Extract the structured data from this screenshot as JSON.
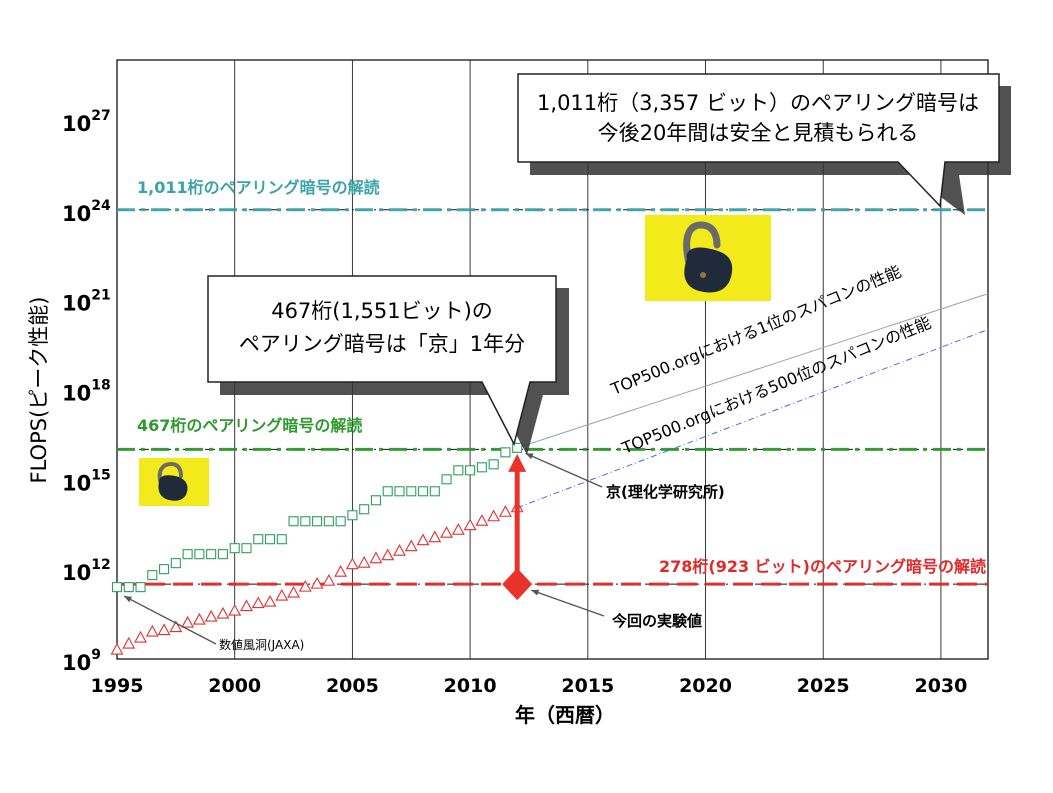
{
  "chart_data": {
    "type": "scatter",
    "xlabel": "年（西暦）",
    "ylabel": "FLOPS(ピーク性能)",
    "y_scale": "log10",
    "xlim": [
      1995,
      2032
    ],
    "ylim": [
      1000000000.0,
      1e+29
    ],
    "x_ticks": [
      1995,
      2000,
      2005,
      2010,
      2015,
      2020,
      2025,
      2030
    ],
    "y_ticks": [
      {
        "base": "10",
        "exp": "9"
      },
      {
        "base": "10",
        "exp": "12"
      },
      {
        "base": "10",
        "exp": "15"
      },
      {
        "base": "10",
        "exp": "18"
      },
      {
        "base": "10",
        "exp": "21"
      },
      {
        "base": "10",
        "exp": "24"
      },
      {
        "base": "10",
        "exp": "27"
      }
    ],
    "grid": "vertical",
    "colors": {
      "top1": "#2e9e62",
      "top500": "#e03030",
      "line1011": "#3aa3a8",
      "line467": "#2e9a2e",
      "line278": "#e02a2a",
      "experiment": "#e8322a",
      "callout_shadow": "#333333"
    },
    "series": [
      {
        "marker": "square",
        "points": [
          [
            1995.0,
            11.4
          ],
          [
            1995.5,
            11.4
          ],
          [
            1996.0,
            11.4
          ],
          [
            1996.5,
            11.8
          ],
          [
            1997.0,
            12.0
          ],
          [
            1997.5,
            12.2
          ],
          [
            1998.0,
            12.5
          ],
          [
            1998.5,
            12.5
          ],
          [
            1999.0,
            12.5
          ],
          [
            1999.5,
            12.5
          ],
          [
            2000.0,
            12.7
          ],
          [
            2000.5,
            12.7
          ],
          [
            2001.0,
            13.0
          ],
          [
            2001.5,
            13.0
          ],
          [
            2002.0,
            13.0
          ],
          [
            2002.5,
            13.6
          ],
          [
            2003.0,
            13.6
          ],
          [
            2003.5,
            13.6
          ],
          [
            2004.0,
            13.6
          ],
          [
            2004.5,
            13.6
          ],
          [
            2005.0,
            13.8
          ],
          [
            2005.5,
            14.0
          ],
          [
            2006.0,
            14.3
          ],
          [
            2006.5,
            14.6
          ],
          [
            2007.0,
            14.6
          ],
          [
            2007.5,
            14.6
          ],
          [
            2008.0,
            14.6
          ],
          [
            2008.5,
            14.6
          ],
          [
            2009.0,
            15.0
          ],
          [
            2009.5,
            15.3
          ],
          [
            2010.0,
            15.3
          ],
          [
            2010.5,
            15.4
          ],
          [
            2011.0,
            15.5
          ],
          [
            2011.5,
            15.9
          ],
          [
            2012.0,
            16.05
          ]
        ]
      },
      {
        "marker": "triangle",
        "points": [
          [
            1995.0,
            9.3
          ],
          [
            1995.5,
            9.5
          ],
          [
            1996.0,
            9.7
          ],
          [
            1996.5,
            9.9
          ],
          [
            1997.0,
            9.95
          ],
          [
            1997.5,
            10.05
          ],
          [
            1998.0,
            10.2
          ],
          [
            1998.5,
            10.3
          ],
          [
            1999.0,
            10.4
          ],
          [
            1999.5,
            10.5
          ],
          [
            2000.0,
            10.6
          ],
          [
            2000.5,
            10.75
          ],
          [
            2001.0,
            10.85
          ],
          [
            2001.5,
            10.9
          ],
          [
            2002.0,
            11.1
          ],
          [
            2002.5,
            11.2
          ],
          [
            2003.0,
            11.4
          ],
          [
            2003.5,
            11.5
          ],
          [
            2004.0,
            11.6
          ],
          [
            2004.5,
            11.9
          ],
          [
            2005.0,
            12.15
          ],
          [
            2005.5,
            12.2
          ],
          [
            2006.0,
            12.35
          ],
          [
            2006.5,
            12.45
          ],
          [
            2007.0,
            12.6
          ],
          [
            2007.5,
            12.75
          ],
          [
            2008.0,
            12.95
          ],
          [
            2008.5,
            13.05
          ],
          [
            2009.0,
            13.2
          ],
          [
            2009.5,
            13.3
          ],
          [
            2010.0,
            13.45
          ],
          [
            2010.5,
            13.6
          ],
          [
            2011.0,
            13.75
          ],
          [
            2011.5,
            13.9
          ],
          [
            2012.0,
            14.05
          ]
        ]
      }
    ],
    "trend_lines": [
      {
        "from": [
          2012.0,
          16.05
        ],
        "to": [
          2032.0,
          21.2
        ]
      },
      {
        "from": [
          2012.0,
          14.05
        ],
        "to": [
          2032.0,
          20.0
        ]
      }
    ],
    "threshold_lines": [
      {
        "label": "1,011桁のペアリング暗号の解読",
        "log10_y": 24.0
      },
      {
        "label": "467桁のペアリング暗号の解読",
        "log10_y": 16.0
      },
      {
        "label": "278桁(923 ビット)のペアリング暗号の解読",
        "log10_y": 11.5
      }
    ],
    "diagonal_labels": {
      "top1": "TOP500.orgにおける1位のスパコンの性能",
      "top500": "TOP500.orgにおける500位のスパコンの性能"
    },
    "experiment_point": {
      "x": 2012.0,
      "log10_y": 11.5
    },
    "annotations": {
      "kei": "京(理化学研究所)",
      "experiment": "今回の実験値",
      "nwt": "数値風洞(JAXA)"
    },
    "callouts": {
      "top_line1": "1,011桁（3,357 ビット）のペアリング暗号は",
      "top_line2": "今後20年間は安全と見積もられる",
      "mid_line1": "467桁(1,551ビット)の",
      "mid_line2": "ペアリング暗号は「京」1年分"
    }
  }
}
